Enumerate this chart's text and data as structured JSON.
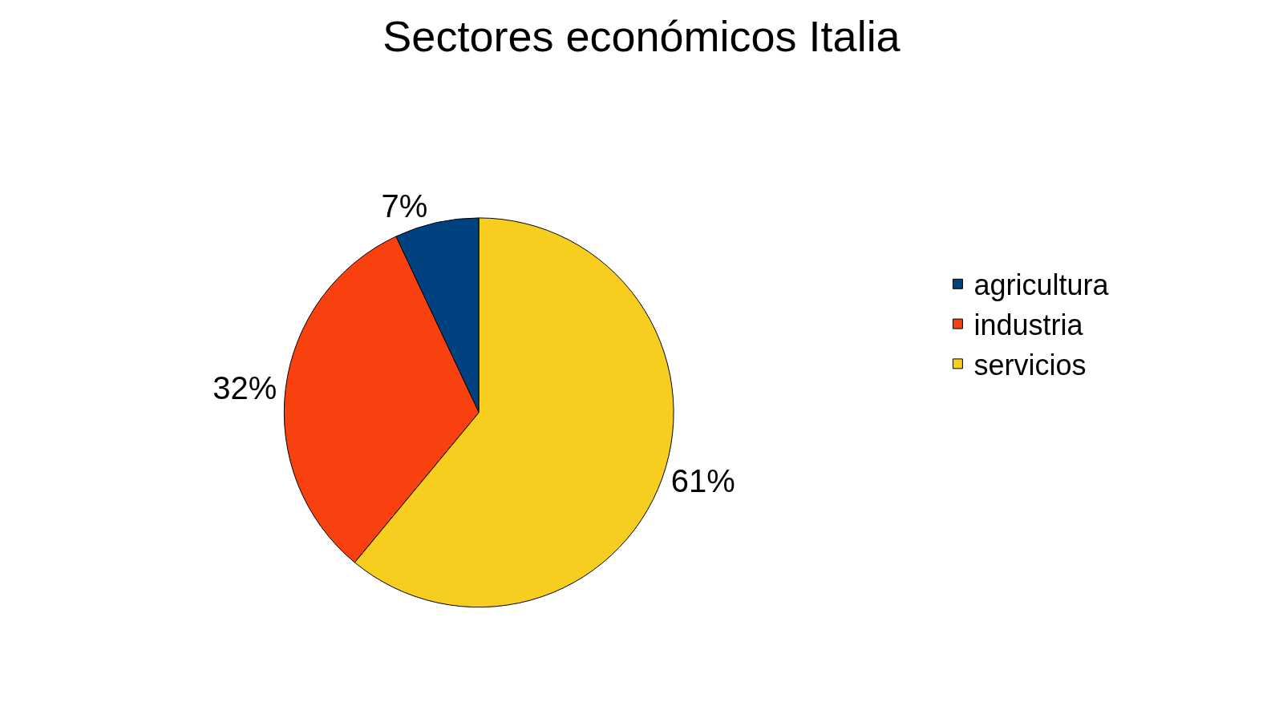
{
  "chart_data": {
    "type": "pie",
    "title": "Sectores económicos Italia",
    "categories": [
      "agricultura",
      "industria",
      "servicios"
    ],
    "values": [
      7,
      32,
      61
    ],
    "value_labels": [
      "7%",
      "32%",
      "61%"
    ],
    "colors": [
      "#00417f",
      "#f8410f",
      "#f7cd20"
    ],
    "legend": "right"
  }
}
